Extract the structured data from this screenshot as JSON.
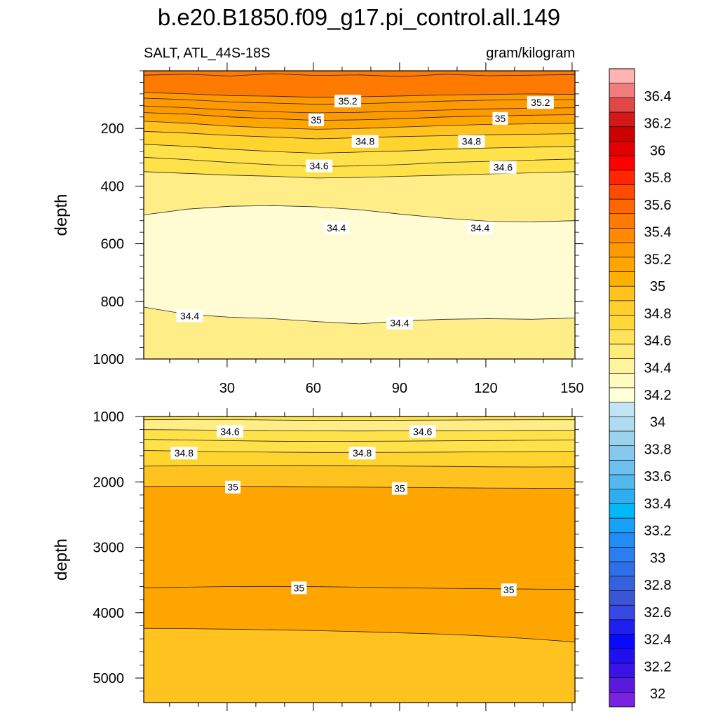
{
  "figure": {
    "title": "b.e20.B1850.f09_g17.pi_control.all.149",
    "left_subtitle": "SALT, ATL_44S-18S",
    "right_subtitle": "gram/kilogram"
  },
  "chart_data": [
    {
      "type": "heatmap",
      "panel": "upper",
      "title": "b.e20.B1850.f09_g17.pi_control.all.149",
      "variable": "SALT",
      "region": "ATL_44S-18S",
      "units": "gram/kilogram",
      "xlabel": "",
      "ylabel": "depth",
      "xlim": [
        1,
        151
      ],
      "ylim": [
        1000,
        0
      ],
      "xticks": [
        30,
        60,
        90,
        120,
        150
      ],
      "yticks": [
        200,
        400,
        600,
        800,
        1000
      ],
      "contours": [
        {
          "level": 35.4,
          "depth": [
            15,
            12,
            18,
            10,
            16,
            14,
            20,
            12,
            17,
            15,
            13
          ]
        },
        {
          "level": 35.2,
          "depth": [
            75,
            80,
            86,
            88,
            92,
            90,
            87,
            84,
            82,
            80,
            82
          ]
        },
        {
          "level": 35.2,
          "depth": [
            95,
            100,
            108,
            112,
            116,
            114,
            110,
            105,
            102,
            100,
            100
          ]
        },
        {
          "level": 35.1,
          "depth": [
            122,
            128,
            136,
            142,
            146,
            144,
            140,
            136,
            132,
            130,
            128
          ]
        },
        {
          "level": 35.0,
          "depth": [
            145,
            150,
            160,
            166,
            172,
            170,
            166,
            160,
            157,
            154,
            152
          ]
        },
        {
          "level": 34.9,
          "depth": [
            175,
            182,
            192,
            198,
            203,
            200,
            195,
            190,
            186,
            184,
            182
          ]
        },
        {
          "level": 34.8,
          "depth": [
            210,
            216,
            224,
            230,
            236,
            232,
            228,
            225,
            222,
            220,
            218
          ]
        },
        {
          "level": 34.7,
          "depth": [
            255,
            262,
            272,
            280,
            286,
            282,
            278,
            272,
            268,
            265,
            262
          ]
        },
        {
          "level": 34.6,
          "depth": [
            300,
            308,
            318,
            326,
            332,
            330,
            325,
            318,
            314,
            310,
            306
          ]
        },
        {
          "level": 34.5,
          "depth": [
            350,
            356,
            362,
            366,
            372,
            370,
            366,
            362,
            358,
            354,
            350
          ]
        },
        {
          "level": 34.4,
          "depth": [
            500,
            480,
            470,
            468,
            472,
            482,
            498,
            512,
            522,
            524,
            520
          ]
        },
        {
          "level": 34.4,
          "depth": [
            820,
            845,
            855,
            860,
            870,
            878,
            868,
            862,
            860,
            862,
            858
          ]
        }
      ],
      "contour_labels": [
        {
          "text": "35.2",
          "x": 72,
          "depth": 105
        },
        {
          "text": "35.2",
          "x": 139,
          "depth": 110
        },
        {
          "text": "35",
          "x": 61,
          "depth": 170
        },
        {
          "text": "35",
          "x": 125,
          "depth": 165
        },
        {
          "text": "34.8",
          "x": 78,
          "depth": 245
        },
        {
          "text": "34.8",
          "x": 115,
          "depth": 245
        },
        {
          "text": "34.6",
          "x": 62,
          "depth": 330
        },
        {
          "text": "34.6",
          "x": 126,
          "depth": 335
        },
        {
          "text": "34.4",
          "x": 68,
          "depth": 545
        },
        {
          "text": "34.4",
          "x": 118,
          "depth": 545
        },
        {
          "text": "34.4",
          "x": 17,
          "depth": 850
        },
        {
          "text": "34.4",
          "x": 90,
          "depth": 875
        }
      ]
    },
    {
      "type": "heatmap",
      "panel": "lower",
      "variable": "SALT",
      "units": "gram/kilogram",
      "xlabel": "",
      "ylabel": "depth",
      "xlim": [
        1,
        151
      ],
      "ylim": [
        5375,
        1000
      ],
      "xticks": [
        30,
        60,
        90,
        120,
        150
      ],
      "yticks": [
        1000,
        2000,
        3000,
        4000,
        5000
      ],
      "contours": [
        {
          "level": 34.5,
          "depth": [
            1050,
            1045,
            1048,
            1055,
            1060,
            1060,
            1058,
            1055,
            1052,
            1050,
            1050
          ]
        },
        {
          "level": 34.6,
          "depth": [
            1200,
            1205,
            1210,
            1215,
            1220,
            1222,
            1220,
            1218,
            1215,
            1212,
            1210
          ]
        },
        {
          "level": 34.7,
          "depth": [
            1350,
            1360,
            1370,
            1378,
            1382,
            1380,
            1376,
            1372,
            1368,
            1364,
            1360
          ]
        },
        {
          "level": 34.8,
          "depth": [
            1520,
            1530,
            1540,
            1545,
            1550,
            1550,
            1548,
            1545,
            1540,
            1536,
            1532
          ]
        },
        {
          "level": 34.9,
          "depth": [
            1760,
            1750,
            1745,
            1745,
            1748,
            1752,
            1758,
            1764,
            1770,
            1772,
            1770
          ]
        },
        {
          "level": 35.0,
          "depth": [
            2070,
            2068,
            2068,
            2070,
            2075,
            2080,
            2085,
            2090,
            2095,
            2098,
            2100
          ]
        },
        {
          "level": 35.0,
          "depth": [
            3620,
            3610,
            3600,
            3598,
            3602,
            3610,
            3620,
            3628,
            3635,
            3640,
            3645
          ]
        },
        {
          "level": 34.9,
          "depth": [
            4240,
            4245,
            4252,
            4262,
            4275,
            4290,
            4310,
            4330,
            4360,
            4400,
            4450
          ]
        }
      ],
      "contour_labels": [
        {
          "text": "34.6",
          "x": 31,
          "depth": 1230
        },
        {
          "text": "34.6",
          "x": 98,
          "depth": 1230
        },
        {
          "text": "34.8",
          "x": 15,
          "depth": 1560
        },
        {
          "text": "34.8",
          "x": 77,
          "depth": 1560
        },
        {
          "text": "35",
          "x": 32,
          "depth": 2080
        },
        {
          "text": "35",
          "x": 90,
          "depth": 2100
        },
        {
          "text": "35",
          "x": 55,
          "depth": 3620
        },
        {
          "text": "35",
          "x": 128,
          "depth": 3650
        }
      ]
    }
  ],
  "colorbar": {
    "labels": [
      "36.4",
      "36.2",
      "36",
      "35.8",
      "35.6",
      "35.4",
      "35.2",
      "35",
      "34.8",
      "34.6",
      "34.4",
      "34.2",
      "34",
      "33.8",
      "33.6",
      "33.4",
      "33.2",
      "33",
      "32.8",
      "32.6",
      "32.4",
      "32.2",
      "32"
    ],
    "colors": [
      "#ffb3b3",
      "#f07c7c",
      "#e04848",
      "#d51919",
      "#cc0000",
      "#e00000",
      "#ff0000",
      "#ff2600",
      "#ff4a00",
      "#ff6600",
      "#ff7a00",
      "#ff8a00",
      "#ff9900",
      "#ffa500",
      "#ffb000",
      "#ffc21e",
      "#ffcf2e",
      "#ffd93a",
      "#ffe35a",
      "#ffeb7a",
      "#fff49e",
      "#fffac0",
      "#ffffd8",
      "#c0e4f2",
      "#b0dcf0",
      "#9cd2ee",
      "#86c8ee",
      "#6ec0ee",
      "#52b8ee",
      "#2eaef0",
      "#00b8f8",
      "#16a0f8",
      "#1f8cf8",
      "#2a7ef0",
      "#2f6ee6",
      "#3562dc",
      "#3a56d6",
      "#3848e6",
      "#1f1ff0",
      "#0a0afa",
      "#2010f0",
      "#3a14e6",
      "#5a1adc",
      "#7a22e4"
    ]
  }
}
